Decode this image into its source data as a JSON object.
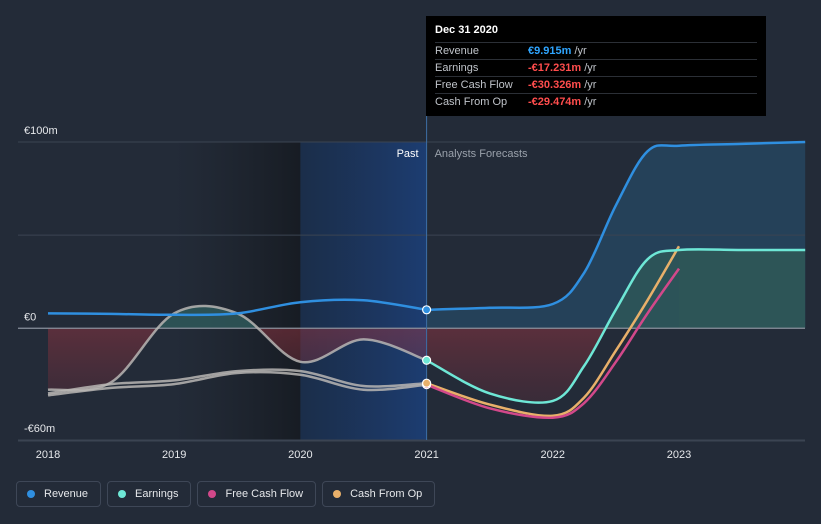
{
  "colors": {
    "background": "#232b38",
    "revenue": "#2f8fe0",
    "earnings": "#6ee7d6",
    "free_cash_flow": "#d2488a",
    "cash_from_op": "#e8b06a",
    "negative_fill": "#7a2e3a",
    "positive_fill": "#25495f",
    "revenue_fill": "#26455f",
    "earnings_fill": "#2d5558",
    "past_highlight": "#183154",
    "tooltip_red": "#ff4d4d",
    "tooltip_blue": "#2fa5ff"
  },
  "tooltip": {
    "date": "Dec 31 2020",
    "rows": [
      {
        "name": "Revenue",
        "value": "€9.915m",
        "unit": "/yr",
        "color": "#2fa5ff"
      },
      {
        "name": "Earnings",
        "value": "-€17.231m",
        "unit": "/yr",
        "color": "#ff4d4d"
      },
      {
        "name": "Free Cash Flow",
        "value": "-€30.326m",
        "unit": "/yr",
        "color": "#ff4d4d"
      },
      {
        "name": "Cash From Op",
        "value": "-€29.474m",
        "unit": "/yr",
        "color": "#ff4d4d"
      }
    ]
  },
  "legend": [
    {
      "name": "Revenue",
      "color": "#2f8fe0",
      "key": "revenue"
    },
    {
      "name": "Earnings",
      "color": "#6ee7d6",
      "key": "earnings"
    },
    {
      "name": "Free Cash Flow",
      "color": "#d2488a",
      "key": "free-cash-flow"
    },
    {
      "name": "Cash From Op",
      "color": "#e8b06a",
      "key": "cash-from-op"
    }
  ],
  "chart_data": {
    "type": "line",
    "title": "",
    "xlabel": "",
    "ylabel": "",
    "x_ticks": [
      2018,
      2019,
      2020,
      2021,
      2022,
      2023
    ],
    "xlim": [
      2018,
      2024
    ],
    "ylim": [
      -60,
      100
    ],
    "y_tick_labels": [
      {
        "value": 100,
        "label": "€100m"
      },
      {
        "value": 0,
        "label": "€0"
      },
      {
        "value": -60,
        "label": "-€60m"
      }
    ],
    "gridlines": [
      100,
      50,
      0,
      -60
    ],
    "past_label": "Past",
    "forecast_label": "Analysts Forecasts",
    "divider_x": 2021,
    "highlight_range": [
      2020,
      2021
    ],
    "series": [
      {
        "name": "Revenue",
        "key": "revenue",
        "color": "#2f8fe0",
        "x": [
          2018,
          2018.5,
          2019,
          2019.5,
          2020,
          2020.5,
          2021,
          2021.5,
          2022,
          2022.25,
          2022.5,
          2022.75,
          2023,
          2023.5,
          2024
        ],
        "y": [
          8,
          7.7,
          7.2,
          8,
          14,
          15,
          9.9,
          11,
          13,
          30,
          66,
          95,
          98,
          99,
          100
        ]
      },
      {
        "name": "Earnings",
        "key": "earnings",
        "color": "#6ee7d6",
        "x": [
          2018,
          2018.5,
          2019,
          2019.5,
          2020,
          2020.5,
          2021,
          2021.5,
          2022,
          2022.25,
          2022.5,
          2022.75,
          2023,
          2023.5,
          2024
        ],
        "y": [
          -33,
          -29,
          8,
          8,
          -18,
          -6,
          -17.2,
          -35,
          -39,
          -20,
          10,
          37,
          42,
          42,
          42
        ]
      },
      {
        "name": "Free Cash Flow",
        "key": "free-cash-flow",
        "color": "#d2488a",
        "x": [
          2018,
          2018.5,
          2019,
          2019.5,
          2020,
          2020.5,
          2021,
          2021.5,
          2022,
          2022.25,
          2022.5,
          2022.75,
          2023
        ],
        "y": [
          -36,
          -32,
          -30,
          -24,
          -25,
          -33,
          -30.3,
          -43,
          -48,
          -40,
          -18,
          8,
          32
        ]
      },
      {
        "name": "Cash From Op",
        "key": "cash-from-op",
        "color": "#e8b06a",
        "x": [
          2018,
          2018.5,
          2019,
          2019.5,
          2020,
          2020.5,
          2021,
          2021.5,
          2022,
          2022.25,
          2022.5,
          2022.75,
          2023
        ],
        "y": [
          -35,
          -30,
          -28,
          -23,
          -23,
          -31,
          -29.5,
          -41,
          -47,
          -37,
          -12,
          15,
          44
        ]
      }
    ],
    "highlighted_points_x": 2021
  }
}
